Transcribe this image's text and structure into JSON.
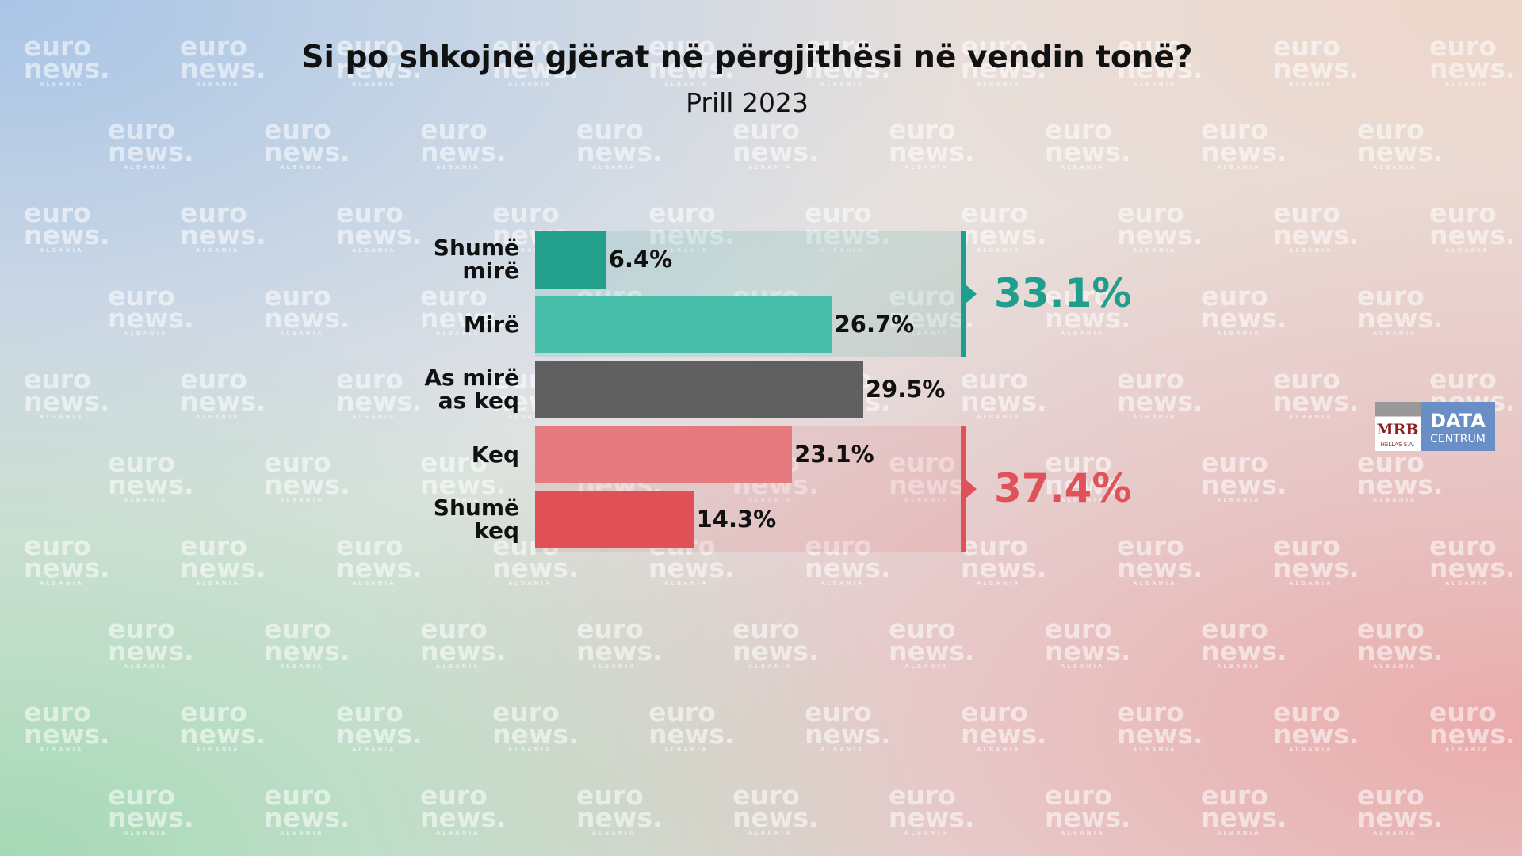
{
  "chart_data": {
    "type": "bar",
    "orientation": "horizontal",
    "title": "Si po shkojnë gjërat në përgjithësi në vendin tonë?",
    "subtitle": "Prill 2023",
    "categories": [
      "Shumë mirë",
      "Mirë",
      "As mirë as keq",
      "Keq",
      "Shumë keq"
    ],
    "values": [
      6.4,
      26.7,
      29.5,
      23.1,
      14.3
    ],
    "value_labels": [
      "6.4%",
      "26.7%",
      "29.5%",
      "23.1%",
      "14.3%"
    ],
    "colors": [
      "#22a08c",
      "#48bfaa",
      "#606060",
      "#e57b7e",
      "#df5157"
    ],
    "annotations": [
      {
        "text": "33.1%",
        "value": 33.1,
        "color": "#1f9e8e"
      },
      {
        "text": "37.4%",
        "value": 37.4,
        "color": "#e0525a"
      }
    ]
  },
  "watermark": {
    "line1": "euro",
    "line2": "news.",
    "line3": "ALBANIA"
  },
  "logo": {
    "left": "MRB",
    "left_sub": "HELLAS S.A.",
    "right": "DATA",
    "right_sub": "CENTRUM"
  }
}
